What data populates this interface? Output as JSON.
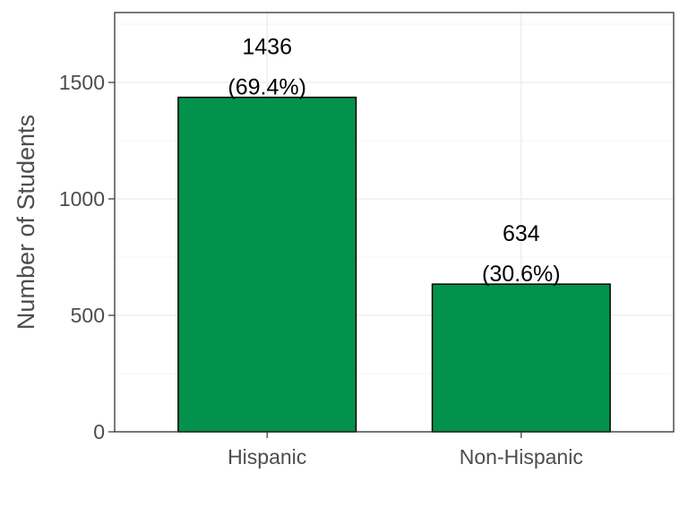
{
  "chart_data": {
    "type": "bar",
    "categories": [
      "Hispanic",
      "Non-Hispanic"
    ],
    "values": [
      1436,
      634
    ],
    "data_labels": [
      [
        "1436",
        "(69.4%)"
      ],
      [
        "634",
        "(30.6%)"
      ]
    ],
    "title": "",
    "xlabel": "",
    "ylabel": "Number of Students",
    "ylim": [
      0,
      1800
    ],
    "yticks": [
      0,
      500,
      1000,
      1500
    ],
    "ytick_labels": [
      "0",
      "500",
      "1000",
      "1500"
    ],
    "grid": true,
    "bar_color": "#03924B",
    "bar_outline": "#000000"
  }
}
